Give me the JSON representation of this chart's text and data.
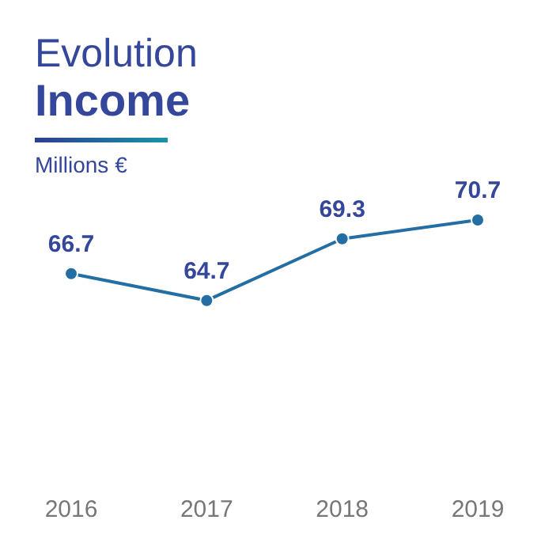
{
  "chart_data": {
    "type": "line",
    "title": "Evolution",
    "subtitle": "Income",
    "ylabel": "Millions €",
    "categories": [
      "2016",
      "2017",
      "2018",
      "2019"
    ],
    "series": [
      {
        "color": "#236ea3",
        "values": [
          66.7,
          64.7,
          69.3,
          70.7
        ]
      }
    ],
    "data_labels": true,
    "marker": "circle",
    "grid": false,
    "legend": false
  }
}
